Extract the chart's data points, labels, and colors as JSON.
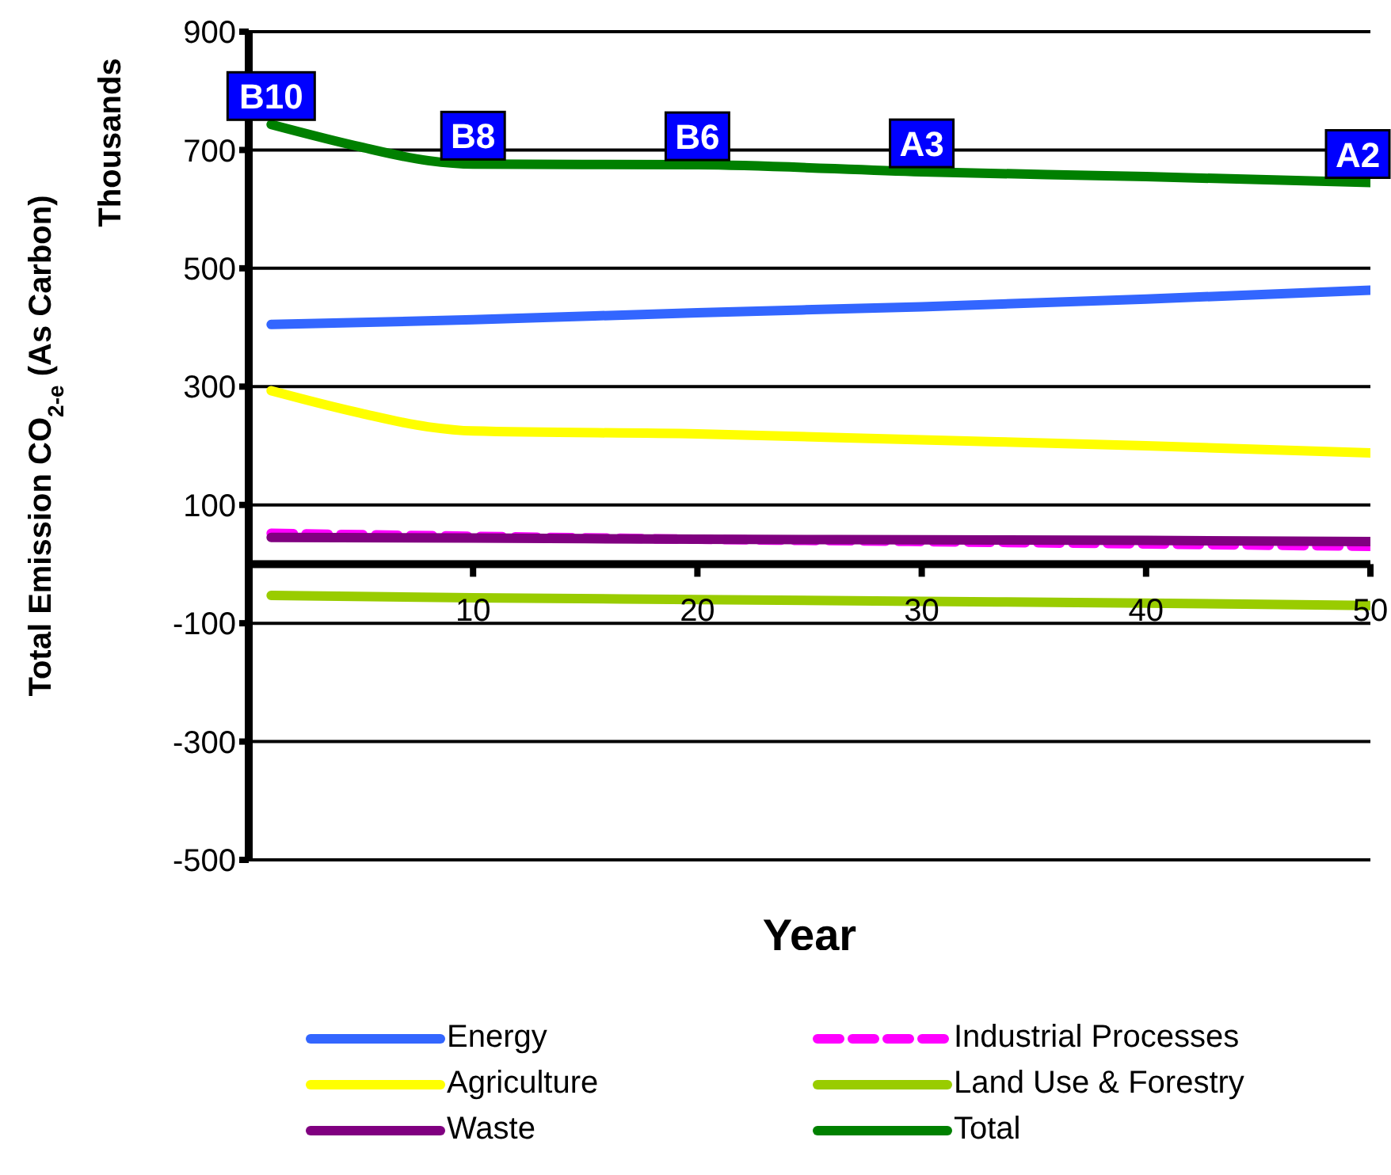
{
  "chart_data": {
    "type": "line",
    "xlabel": "Year",
    "ylabel": "Total Emission CO$_{2-e}$ (As Carbon)",
    "xlim": [
      0,
      50
    ],
    "xticks": [
      10,
      20,
      30,
      40,
      50
    ],
    "ylim": [
      -500,
      900
    ],
    "yticks": [
      -500,
      -300,
      -100,
      100,
      300,
      500,
      700,
      900
    ],
    "grid": "y",
    "legend": "bottom",
    "line_style": "solid",
    "marker": "none",
    "series": [
      {
        "name": "Energy",
        "color": "#3366ff",
        "x": [
          1,
          10,
          20,
          30,
          40,
          50
        ],
        "values": [
          405,
          413,
          425,
          435,
          448,
          463
        ]
      },
      {
        "name": "Industrial Processes",
        "color": "#ff00ff",
        "line_style": "dashed",
        "x": [
          1,
          10,
          20,
          30,
          40,
          50
        ],
        "values": [
          52,
          47,
          42,
          38,
          34,
          30
        ]
      },
      {
        "name": "Agriculture",
        "color": "#ffff00",
        "x": [
          1,
          5,
          8,
          10,
          20,
          30,
          40,
          50
        ],
        "values": [
          293,
          255,
          232,
          225,
          220,
          210,
          200,
          188
        ]
      },
      {
        "name": "Land Use & Forestry",
        "color": "#99cc00",
        "x": [
          1,
          10,
          20,
          30,
          40,
          50
        ],
        "values": [
          -53,
          -57,
          -60,
          -63,
          -66,
          -70
        ]
      },
      {
        "name": "Waste",
        "color": "#800080",
        "x": [
          1,
          10,
          20,
          30,
          40,
          50
        ],
        "values": [
          45,
          44,
          42,
          41,
          40,
          38
        ]
      },
      {
        "name": "Total",
        "color": "#008000",
        "x": [
          1,
          5,
          8,
          10,
          20,
          30,
          40,
          50
        ],
        "values": [
          743,
          705,
          682,
          676,
          675,
          663,
          655,
          645
        ]
      }
    ],
    "annotations": [
      "Thousands",
      {
        "text": "B10",
        "x": 1,
        "y": 743
      },
      {
        "text": "B8",
        "x": 10,
        "y": 676
      },
      {
        "text": "B6",
        "x": 20,
        "y": 675
      },
      {
        "text": "A3",
        "x": 30,
        "y": 663
      },
      {
        "text": "A2",
        "x": 50,
        "y": 645
      }
    ]
  }
}
